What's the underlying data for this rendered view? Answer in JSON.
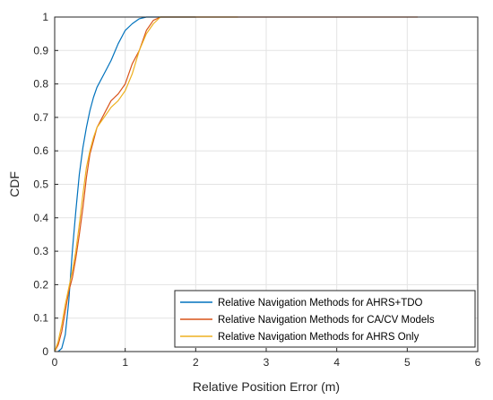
{
  "chart_data": {
    "type": "line",
    "title": "",
    "xlabel": "Relative Position Error (m)",
    "ylabel": "CDF",
    "xlim": [
      0,
      6
    ],
    "ylim": [
      0,
      1
    ],
    "xticks": [
      "0",
      "1",
      "2",
      "3",
      "4",
      "5",
      "6"
    ],
    "yticks": [
      "0",
      "0.1",
      "0.2",
      "0.3",
      "0.4",
      "0.5",
      "0.6",
      "0.7",
      "0.8",
      "0.9",
      "1"
    ],
    "grid": true,
    "legend_position": "bottom-right",
    "series": [
      {
        "name": "Relative Navigation Methods for AHRS+TDO",
        "color": "#0072BD",
        "x": [
          0.05,
          0.1,
          0.15,
          0.2,
          0.25,
          0.3,
          0.35,
          0.4,
          0.45,
          0.5,
          0.55,
          0.6,
          0.7,
          0.8,
          0.9,
          1.0,
          1.1,
          1.2,
          1.3,
          1.4,
          1.5,
          2.0
        ],
        "y": [
          0.0,
          0.01,
          0.05,
          0.15,
          0.3,
          0.42,
          0.53,
          0.61,
          0.67,
          0.72,
          0.76,
          0.79,
          0.83,
          0.87,
          0.92,
          0.96,
          0.98,
          0.995,
          1.0,
          1.0,
          1.0,
          1.0
        ]
      },
      {
        "name": "Relative Navigation Methods for CA/CV Models",
        "color": "#D95319",
        "x": [
          0.0,
          0.05,
          0.1,
          0.15,
          0.2,
          0.25,
          0.3,
          0.35,
          0.4,
          0.45,
          0.5,
          0.55,
          0.6,
          0.7,
          0.8,
          0.9,
          1.0,
          1.1,
          1.2,
          1.3,
          1.4,
          1.5,
          2.0,
          5.15
        ],
        "y": [
          0.0,
          0.02,
          0.06,
          0.12,
          0.18,
          0.22,
          0.28,
          0.35,
          0.43,
          0.52,
          0.59,
          0.63,
          0.67,
          0.71,
          0.75,
          0.77,
          0.8,
          0.86,
          0.9,
          0.96,
          0.99,
          1.0,
          1.0,
          1.0
        ]
      },
      {
        "name": "Relative Navigation Methods for AHRS Only",
        "color": "#EDB120",
        "x": [
          0.0,
          0.05,
          0.1,
          0.15,
          0.2,
          0.25,
          0.3,
          0.35,
          0.4,
          0.45,
          0.5,
          0.55,
          0.6,
          0.7,
          0.8,
          0.9,
          1.0,
          1.1,
          1.2,
          1.3,
          1.4,
          1.5,
          2.0,
          2.6
        ],
        "y": [
          0.0,
          0.03,
          0.08,
          0.14,
          0.19,
          0.24,
          0.3,
          0.38,
          0.47,
          0.55,
          0.6,
          0.64,
          0.67,
          0.7,
          0.73,
          0.75,
          0.78,
          0.83,
          0.9,
          0.95,
          0.98,
          1.0,
          1.0,
          1.0
        ]
      }
    ]
  }
}
